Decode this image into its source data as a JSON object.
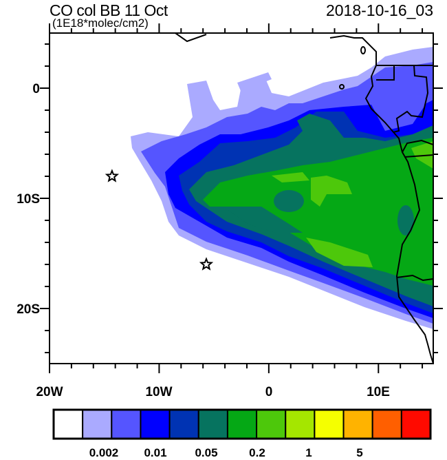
{
  "header": {
    "title": "CO col BB 11 Oct",
    "units": "(1E18*molec/cm2)",
    "datetime": "2018-10-16_03"
  },
  "map": {
    "lon_range": [
      -20,
      15
    ],
    "lat_range": [
      -25,
      5
    ],
    "y_labels": [
      "0",
      "10S",
      "20S"
    ],
    "x_labels": [
      "20W",
      "10W",
      "0",
      "10E"
    ],
    "markers": [
      {
        "type": "star",
        "lon": -14.3,
        "lat": -8.0
      },
      {
        "type": "star",
        "lon": -5.7,
        "lat": -16.0
      }
    ]
  },
  "colorbar": {
    "colors": [
      "#ffffff",
      "#aaaaff",
      "#5555ff",
      "#0000ff",
      "#0033b3",
      "#06735f",
      "#05a815",
      "#4dc80b",
      "#a5e600",
      "#f5ff00",
      "#ffb300",
      "#ff5f00",
      "#ff0a00"
    ],
    "labels": [
      "0.002",
      "0.01",
      "0.05",
      "0.2",
      "1",
      "5"
    ]
  }
}
